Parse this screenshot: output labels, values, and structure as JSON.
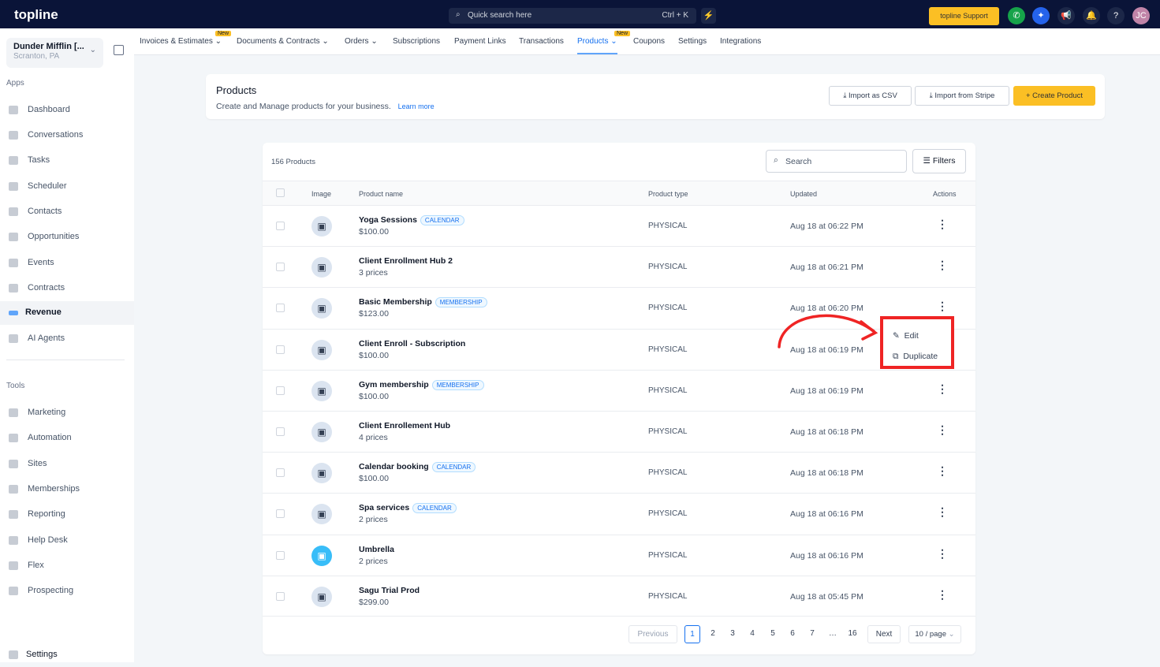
{
  "app": {
    "logo": "topline",
    "quick_search": "Quick search here",
    "shortcut": "Ctrl + K",
    "support": "topline Support",
    "avatar": "JC",
    "colors": {
      "topbar": "#0a1438",
      "accent": "#fbbf24",
      "link": "#1570ef",
      "highlight": "#ef2424"
    }
  },
  "account": {
    "name": "Dunder Mifflin [...",
    "location": "Scranton, PA"
  },
  "sidebar": {
    "apps_label": "Apps",
    "apps": [
      "Dashboard",
      "Conversations",
      "Tasks",
      "Scheduler",
      "Contacts",
      "Opportunities",
      "Events",
      "Contracts",
      "Revenue",
      "AI Agents"
    ],
    "tools_label": "Tools",
    "tools": [
      "Marketing",
      "Automation",
      "Sites",
      "Memberships",
      "Reporting",
      "Help Desk",
      "Flex",
      "Prospecting"
    ],
    "settings": "Settings"
  },
  "subnav": {
    "items": [
      "Invoices & Estimates",
      "Documents & Contracts",
      "Orders",
      "Subscriptions",
      "Payment Links",
      "Transactions",
      "Products",
      "Coupons",
      "Settings",
      "Integrations"
    ],
    "new_badge": "New",
    "active": "Products"
  },
  "page": {
    "title": "Products",
    "subtitle": "Create and Manage products for your business.",
    "learn_more": "Learn more",
    "import_csv": "Import as CSV",
    "import_stripe": "Import from Stripe",
    "create": "Create Product"
  },
  "table": {
    "count": "156 Products",
    "search_placeholder": "Search",
    "filters": "Filters",
    "headers": [
      "Image",
      "Product name",
      "Product type",
      "Updated",
      "Actions"
    ],
    "rows": [
      {
        "name": "Yoga Sessions",
        "tag": "CALENDAR",
        "price": "$100.00",
        "type": "PHYSICAL",
        "updated": "Aug 18 at 06:22 PM"
      },
      {
        "name": "Client Enrollment Hub 2",
        "tag": "",
        "price": "3 prices",
        "type": "PHYSICAL",
        "updated": "Aug 18 at 06:21 PM"
      },
      {
        "name": "Basic Membership",
        "tag": "MEMBERSHIP",
        "price": "$123.00",
        "type": "PHYSICAL",
        "updated": "Aug 18 at 06:20 PM"
      },
      {
        "name": "Client Enroll - Subscription",
        "tag": "",
        "price": "$100.00",
        "type": "PHYSICAL",
        "updated": "Aug 18 at 06:19 PM"
      },
      {
        "name": "Gym membership",
        "tag": "MEMBERSHIP",
        "price": "$100.00",
        "type": "PHYSICAL",
        "updated": "Aug 18 at 06:19 PM"
      },
      {
        "name": "Client Enrollement Hub",
        "tag": "",
        "price": "4 prices",
        "type": "PHYSICAL",
        "updated": "Aug 18 at 06:18 PM"
      },
      {
        "name": "Calendar booking",
        "tag": "CALENDAR",
        "price": "$100.00",
        "type": "PHYSICAL",
        "updated": "Aug 18 at 06:18 PM"
      },
      {
        "name": "Spa services",
        "tag": "CALENDAR",
        "price": "2 prices",
        "type": "PHYSICAL",
        "updated": "Aug 18 at 06:16 PM"
      },
      {
        "name": "Umbrella",
        "tag": "",
        "price": "2 prices",
        "type": "PHYSICAL",
        "updated": "Aug 18 at 06:16 PM"
      },
      {
        "name": "Sagu Trial Prod",
        "tag": "",
        "price": "$299.00",
        "type": "PHYSICAL",
        "updated": "Aug 18 at 05:45 PM"
      }
    ]
  },
  "menu": {
    "edit": "Edit",
    "duplicate": "Duplicate"
  },
  "pagination": {
    "previous": "Previous",
    "pages": [
      "1",
      "2",
      "3",
      "4",
      "5",
      "6",
      "7",
      "…",
      "16"
    ],
    "current": "1",
    "next": "Next",
    "page_size": "10 / page"
  }
}
